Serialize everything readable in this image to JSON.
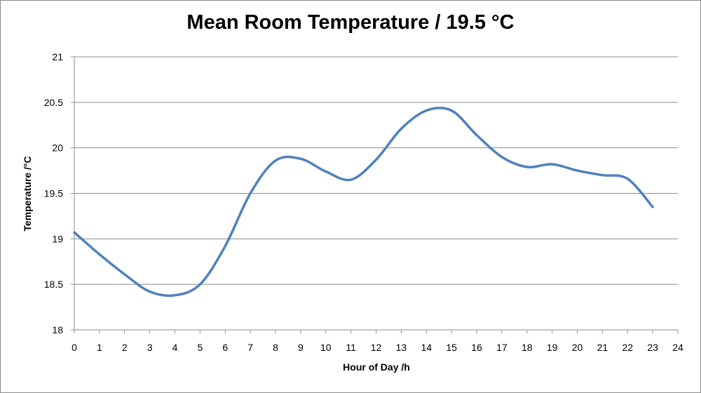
{
  "chart_data": {
    "type": "line",
    "title": "Mean Room Temperature / 19.5 °C",
    "xlabel": "Hour of Day /h",
    "ylabel": "Temperature /°C",
    "xlim": [
      0,
      24
    ],
    "ylim": [
      18,
      21
    ],
    "x_ticks": [
      "0",
      "1",
      "2",
      "3",
      "4",
      "5",
      "6",
      "7",
      "8",
      "9",
      "10",
      "11",
      "12",
      "13",
      "14",
      "15",
      "16",
      "17",
      "18",
      "19",
      "20",
      "21",
      "22",
      "23",
      "24"
    ],
    "y_ticks": [
      "18",
      "18.5",
      "19",
      "19.5",
      "20",
      "20.5",
      "21"
    ],
    "grid": "horizontal",
    "line_color": "#4F81BD",
    "series": [
      {
        "x": [
          0,
          1,
          2,
          3,
          4,
          5,
          6,
          7,
          8,
          9,
          10,
          11,
          12,
          13,
          14,
          15,
          16,
          17,
          18,
          19,
          20,
          21,
          22,
          23
        ],
        "values": [
          19.07,
          18.83,
          18.61,
          18.42,
          18.38,
          18.5,
          18.92,
          19.5,
          19.86,
          19.88,
          19.74,
          19.65,
          19.87,
          20.21,
          20.41,
          20.41,
          20.14,
          19.9,
          19.79,
          19.82,
          19.75,
          19.7,
          19.66,
          19.35
        ]
      }
    ]
  }
}
